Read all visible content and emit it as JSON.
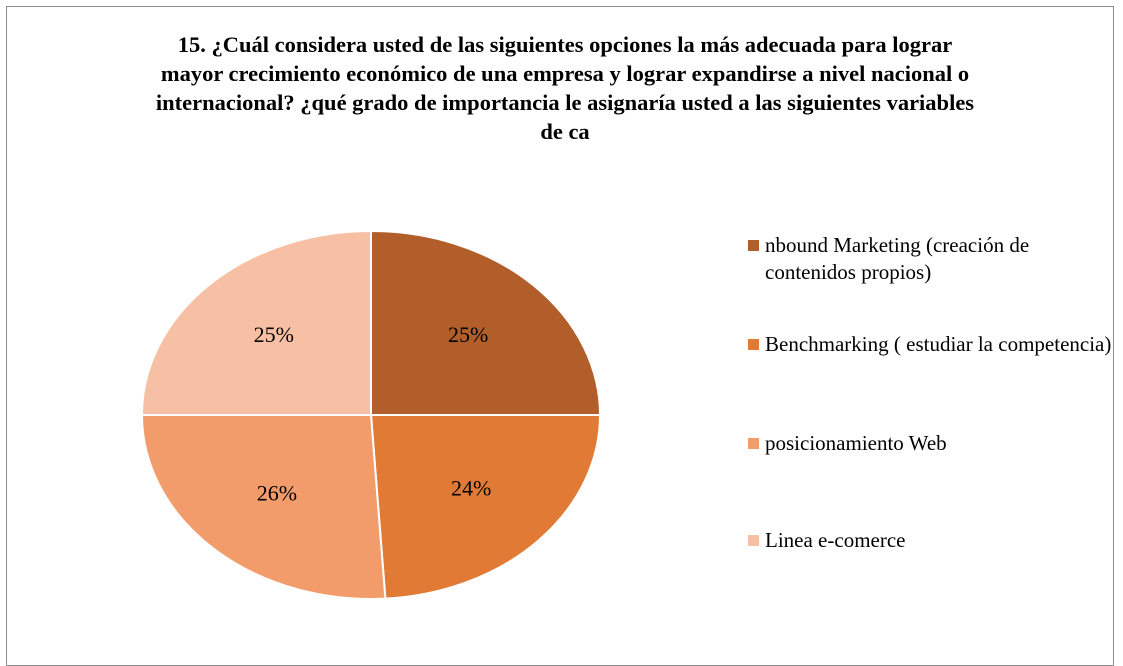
{
  "chart_data": {
    "type": "pie",
    "title": "15. ¿Cuál considera usted de las siguientes opciones la más adecuada para lograr mayor crecimiento económico de una empresa y lograr expandirse a nivel nacional o internacional? ¿qué grado de importancia le asignaría usted a las siguientes variables de ca",
    "categories": [
      "nbound Marketing (creación de contenidos propios)",
      "Benchmarking ( estudiar la competencia)",
      "posicionamiento Web",
      "Linea e-comerce"
    ],
    "values": [
      25,
      24,
      26,
      25
    ],
    "value_labels": [
      "25%",
      "24%",
      "26%",
      "25%"
    ],
    "colors": [
      "#b15e2a",
      "#e07a35",
      "#f39c6b",
      "#f7bfa3"
    ],
    "legend": "right"
  }
}
